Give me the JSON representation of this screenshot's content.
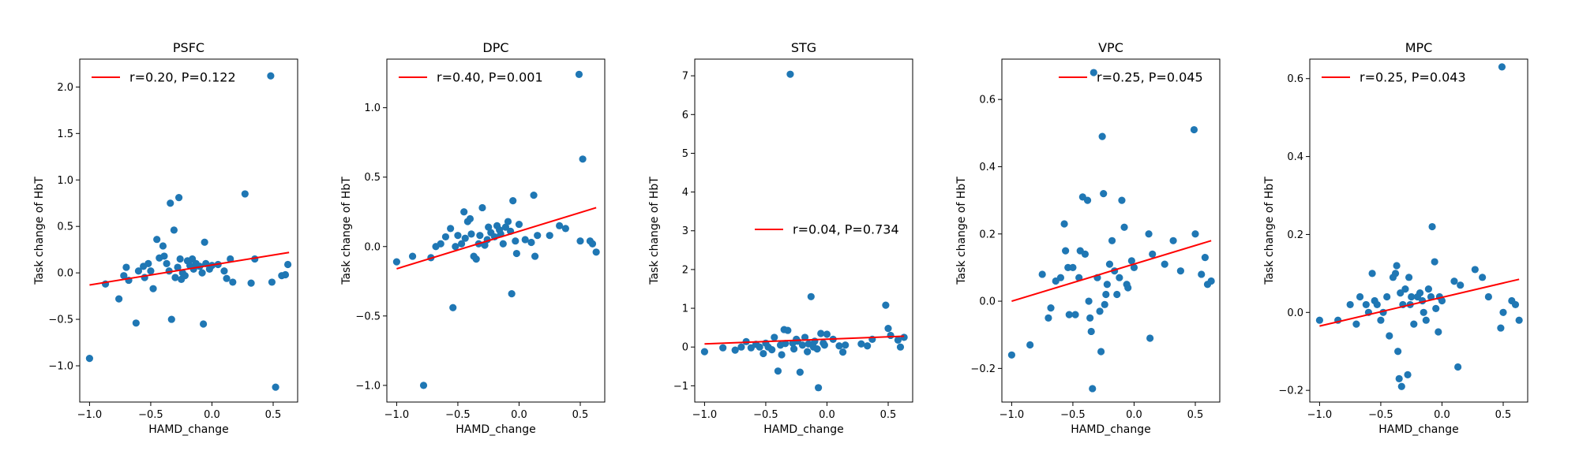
{
  "figure": {
    "marker_color": "#1f77b4",
    "fit_color": "#ff0000"
  },
  "chart_data": [
    {
      "type": "scatter",
      "title": "PSFC",
      "xlabel": "HAMD_change",
      "ylabel": "Task change of HbT",
      "xlim": [
        -1.08,
        0.7
      ],
      "ylim": [
        -1.39,
        2.3
      ],
      "xticks": [
        -1.0,
        -0.5,
        0.0,
        0.5
      ],
      "xtick_labels": [
        "−1.0",
        "−0.5",
        "0.0",
        "0.5"
      ],
      "yticks": [
        -1.0,
        -0.5,
        0.0,
        0.5,
        1.0,
        1.5,
        2.0
      ],
      "ytick_labels": [
        "−1.0",
        "−0.5",
        "0.0",
        "0.5",
        "1.0",
        "1.5",
        "2.0"
      ],
      "legend": {
        "text": "r=0.20, P=0.122",
        "loc": "upper-left"
      },
      "fit": {
        "x": [
          -1.0,
          0.63
        ],
        "y": [
          -0.13,
          0.22
        ]
      },
      "points": [
        [
          -1.0,
          -0.92
        ],
        [
          -0.87,
          -0.12
        ],
        [
          -0.76,
          -0.28
        ],
        [
          -0.72,
          -0.03
        ],
        [
          -0.7,
          0.06
        ],
        [
          -0.68,
          -0.08
        ],
        [
          -0.62,
          -0.54
        ],
        [
          -0.6,
          0.02
        ],
        [
          -0.56,
          0.07
        ],
        [
          -0.55,
          -0.05
        ],
        [
          -0.52,
          0.1
        ],
        [
          -0.5,
          0.02
        ],
        [
          -0.48,
          -0.17
        ],
        [
          -0.45,
          0.36
        ],
        [
          -0.43,
          0.16
        ],
        [
          -0.4,
          0.29
        ],
        [
          -0.39,
          0.18
        ],
        [
          -0.37,
          0.1
        ],
        [
          -0.35,
          0.02
        ],
        [
          -0.34,
          0.75
        ],
        [
          -0.33,
          -0.5
        ],
        [
          -0.31,
          0.46
        ],
        [
          -0.3,
          -0.05
        ],
        [
          -0.28,
          0.06
        ],
        [
          -0.27,
          0.81
        ],
        [
          -0.26,
          0.15
        ],
        [
          -0.25,
          -0.07
        ],
        [
          -0.24,
          0.0
        ],
        [
          -0.22,
          -0.03
        ],
        [
          -0.2,
          0.13
        ],
        [
          -0.18,
          0.08
        ],
        [
          -0.16,
          0.15
        ],
        [
          -0.15,
          0.04
        ],
        [
          -0.13,
          0.1
        ],
        [
          -0.1,
          0.07
        ],
        [
          -0.08,
          0.0
        ],
        [
          -0.07,
          -0.55
        ],
        [
          -0.06,
          0.33
        ],
        [
          -0.05,
          0.1
        ],
        [
          -0.02,
          0.04
        ],
        [
          0.0,
          0.08
        ],
        [
          0.05,
          0.09
        ],
        [
          0.1,
          0.02
        ],
        [
          0.12,
          -0.06
        ],
        [
          0.15,
          0.15
        ],
        [
          0.17,
          -0.1
        ],
        [
          0.27,
          0.85
        ],
        [
          0.32,
          -0.11
        ],
        [
          0.35,
          0.15
        ],
        [
          0.48,
          2.12
        ],
        [
          0.49,
          -0.1
        ],
        [
          0.52,
          -1.23
        ],
        [
          0.57,
          -0.03
        ],
        [
          0.6,
          -0.02
        ],
        [
          0.62,
          0.09
        ]
      ]
    },
    {
      "type": "scatter",
      "title": "DPC",
      "xlabel": "HAMD_change",
      "ylabel": "Task change of HbT",
      "xlim": [
        -1.08,
        0.7
      ],
      "ylim": [
        -1.12,
        1.35
      ],
      "xticks": [
        -1.0,
        -0.5,
        0.0,
        0.5
      ],
      "xtick_labels": [
        "−1.0",
        "−0.5",
        "0.0",
        "0.5"
      ],
      "yticks": [
        -1.0,
        -0.5,
        0.0,
        0.5,
        1.0
      ],
      "ytick_labels": [
        "−1.0",
        "−0.5",
        "0.0",
        "0.5",
        "1.0"
      ],
      "legend": {
        "text": "r=0.40, P=0.001",
        "loc": "upper-left"
      },
      "fit": {
        "x": [
          -1.0,
          0.63
        ],
        "y": [
          -0.16,
          0.28
        ]
      },
      "points": [
        [
          -1.0,
          -0.11
        ],
        [
          -0.87,
          -0.07
        ],
        [
          -0.78,
          -1.0
        ],
        [
          -0.72,
          -0.08
        ],
        [
          -0.68,
          0.0
        ],
        [
          -0.64,
          0.02
        ],
        [
          -0.6,
          0.07
        ],
        [
          -0.56,
          0.13
        ],
        [
          -0.54,
          -0.44
        ],
        [
          -0.52,
          0.0
        ],
        [
          -0.5,
          0.08
        ],
        [
          -0.47,
          0.02
        ],
        [
          -0.45,
          0.25
        ],
        [
          -0.44,
          0.06
        ],
        [
          -0.42,
          0.18
        ],
        [
          -0.4,
          0.2
        ],
        [
          -0.39,
          0.09
        ],
        [
          -0.37,
          -0.07
        ],
        [
          -0.35,
          -0.09
        ],
        [
          -0.33,
          0.02
        ],
        [
          -0.32,
          0.08
        ],
        [
          -0.3,
          0.28
        ],
        [
          -0.28,
          0.01
        ],
        [
          -0.26,
          0.05
        ],
        [
          -0.25,
          0.14
        ],
        [
          -0.23,
          0.1
        ],
        [
          -0.2,
          0.07
        ],
        [
          -0.18,
          0.15
        ],
        [
          -0.16,
          0.12
        ],
        [
          -0.15,
          0.09
        ],
        [
          -0.13,
          0.02
        ],
        [
          -0.11,
          0.14
        ],
        [
          -0.09,
          0.18
        ],
        [
          -0.07,
          0.11
        ],
        [
          -0.06,
          -0.34
        ],
        [
          -0.05,
          0.33
        ],
        [
          -0.03,
          0.04
        ],
        [
          -0.02,
          -0.05
        ],
        [
          0.0,
          0.16
        ],
        [
          0.05,
          0.05
        ],
        [
          0.1,
          0.03
        ],
        [
          0.12,
          0.37
        ],
        [
          0.13,
          -0.07
        ],
        [
          0.15,
          0.08
        ],
        [
          0.25,
          0.08
        ],
        [
          0.33,
          0.15
        ],
        [
          0.38,
          0.13
        ],
        [
          0.49,
          1.24
        ],
        [
          0.5,
          0.04
        ],
        [
          0.52,
          0.63
        ],
        [
          0.58,
          0.04
        ],
        [
          0.6,
          0.02
        ],
        [
          0.63,
          -0.04
        ]
      ]
    },
    {
      "type": "scatter",
      "title": "STG",
      "xlabel": "HAMD_change",
      "ylabel": "Task change of HbT",
      "xlim": [
        -1.08,
        0.7
      ],
      "ylim": [
        -1.42,
        7.43
      ],
      "xticks": [
        -1.0,
        -0.5,
        0.0,
        0.5
      ],
      "xtick_labels": [
        "−1.0",
        "−0.5",
        "0.0",
        "0.5"
      ],
      "yticks": [
        -1,
        0,
        1,
        2,
        3,
        4,
        5,
        6,
        7
      ],
      "ytick_labels": [
        "−1",
        "0",
        "1",
        "2",
        "3",
        "4",
        "5",
        "6",
        "7"
      ],
      "legend": {
        "text": "r=0.04, P=0.734",
        "loc": "center-right"
      },
      "fit": {
        "x": [
          -1.0,
          0.63
        ],
        "y": [
          0.08,
          0.28
        ]
      },
      "points": [
        [
          -1.0,
          -0.12
        ],
        [
          -0.85,
          -0.02
        ],
        [
          -0.75,
          -0.08
        ],
        [
          -0.7,
          0.0
        ],
        [
          -0.66,
          0.14
        ],
        [
          -0.62,
          -0.02
        ],
        [
          -0.58,
          0.07
        ],
        [
          -0.55,
          0.0
        ],
        [
          -0.52,
          -0.17
        ],
        [
          -0.5,
          0.1
        ],
        [
          -0.48,
          0.0
        ],
        [
          -0.45,
          -0.07
        ],
        [
          -0.43,
          0.25
        ],
        [
          -0.4,
          -0.62
        ],
        [
          -0.38,
          0.05
        ],
        [
          -0.37,
          -0.2
        ],
        [
          -0.35,
          0.45
        ],
        [
          -0.34,
          0.09
        ],
        [
          -0.32,
          0.43
        ],
        [
          -0.3,
          7.04
        ],
        [
          -0.28,
          0.1
        ],
        [
          -0.27,
          -0.05
        ],
        [
          -0.25,
          0.2
        ],
        [
          -0.24,
          0.15
        ],
        [
          -0.22,
          -0.65
        ],
        [
          -0.2,
          0.05
        ],
        [
          -0.18,
          0.25
        ],
        [
          -0.16,
          -0.12
        ],
        [
          -0.15,
          0.08
        ],
        [
          -0.13,
          1.3
        ],
        [
          -0.11,
          0.0
        ],
        [
          -0.1,
          0.15
        ],
        [
          -0.08,
          -0.05
        ],
        [
          -0.07,
          -1.05
        ],
        [
          -0.05,
          0.35
        ],
        [
          -0.03,
          0.1
        ],
        [
          -0.02,
          0.05
        ],
        [
          0.0,
          0.33
        ],
        [
          0.05,
          0.2
        ],
        [
          0.1,
          0.03
        ],
        [
          0.13,
          -0.13
        ],
        [
          0.15,
          0.05
        ],
        [
          0.28,
          0.08
        ],
        [
          0.33,
          0.03
        ],
        [
          0.37,
          0.2
        ],
        [
          0.48,
          1.08
        ],
        [
          0.5,
          0.48
        ],
        [
          0.52,
          0.3
        ],
        [
          0.58,
          0.18
        ],
        [
          0.6,
          0.0
        ],
        [
          0.63,
          0.25
        ]
      ]
    },
    {
      "type": "scatter",
      "title": "VPC",
      "xlabel": "HAMD_change",
      "ylabel": "Task change of HbT",
      "xlim": [
        -1.08,
        0.7
      ],
      "ylim": [
        -0.3,
        0.72
      ],
      "xticks": [
        -1.0,
        -0.5,
        0.0,
        0.5
      ],
      "xtick_labels": [
        "−1.0",
        "−0.5",
        "0.0",
        "0.5"
      ],
      "yticks": [
        -0.2,
        0.0,
        0.2,
        0.4,
        0.6
      ],
      "ytick_labels": [
        "−0.2",
        "0.0",
        "0.2",
        "0.4",
        "0.6"
      ],
      "legend": {
        "text": "r=0.25, P=0.045",
        "loc": "upper-right"
      },
      "fit": {
        "x": [
          -1.0,
          0.63
        ],
        "y": [
          0.0,
          0.18
        ]
      },
      "points": [
        [
          -1.0,
          -0.16
        ],
        [
          -0.85,
          -0.13
        ],
        [
          -0.75,
          0.08
        ],
        [
          -0.7,
          -0.05
        ],
        [
          -0.68,
          -0.02
        ],
        [
          -0.64,
          0.06
        ],
        [
          -0.6,
          0.07
        ],
        [
          -0.57,
          0.23
        ],
        [
          -0.56,
          0.15
        ],
        [
          -0.54,
          0.1
        ],
        [
          -0.53,
          -0.04
        ],
        [
          -0.5,
          0.1
        ],
        [
          -0.48,
          -0.04
        ],
        [
          -0.45,
          0.07
        ],
        [
          -0.44,
          0.15
        ],
        [
          -0.42,
          0.31
        ],
        [
          -0.4,
          0.14
        ],
        [
          -0.38,
          0.3
        ],
        [
          -0.37,
          0.0
        ],
        [
          -0.36,
          -0.05
        ],
        [
          -0.35,
          -0.09
        ],
        [
          -0.34,
          -0.26
        ],
        [
          -0.33,
          0.68
        ],
        [
          -0.3,
          0.07
        ],
        [
          -0.28,
          -0.03
        ],
        [
          -0.27,
          -0.15
        ],
        [
          -0.26,
          0.49
        ],
        [
          -0.25,
          0.32
        ],
        [
          -0.24,
          -0.01
        ],
        [
          -0.23,
          0.02
        ],
        [
          -0.22,
          0.05
        ],
        [
          -0.2,
          0.11
        ],
        [
          -0.18,
          0.18
        ],
        [
          -0.16,
          0.09
        ],
        [
          -0.14,
          0.02
        ],
        [
          -0.12,
          0.07
        ],
        [
          -0.1,
          0.3
        ],
        [
          -0.08,
          0.22
        ],
        [
          -0.06,
          0.05
        ],
        [
          -0.05,
          0.04
        ],
        [
          -0.02,
          0.12
        ],
        [
          0.0,
          0.1
        ],
        [
          0.12,
          0.2
        ],
        [
          0.13,
          -0.11
        ],
        [
          0.15,
          0.14
        ],
        [
          0.25,
          0.11
        ],
        [
          0.32,
          0.18
        ],
        [
          0.38,
          0.09
        ],
        [
          0.49,
          0.51
        ],
        [
          0.5,
          0.2
        ],
        [
          0.55,
          0.08
        ],
        [
          0.58,
          0.13
        ],
        [
          0.6,
          0.05
        ],
        [
          0.63,
          0.06
        ]
      ]
    },
    {
      "type": "scatter",
      "title": "MPC",
      "xlabel": "HAMD_change",
      "ylabel": "Task change of HbT",
      "xlim": [
        -1.08,
        0.7
      ],
      "ylim": [
        -0.23,
        0.65
      ],
      "xticks": [
        -1.0,
        -0.5,
        0.0,
        0.5
      ],
      "xtick_labels": [
        "−1.0",
        "−0.5",
        "0.0",
        "0.5"
      ],
      "yticks": [
        -0.2,
        0.0,
        0.2,
        0.4,
        0.6
      ],
      "ytick_labels": [
        "−0.2",
        "0.0",
        "0.2",
        "0.4",
        "0.6"
      ],
      "legend": {
        "text": "r=0.25, P=0.043",
        "loc": "upper-left"
      },
      "fit": {
        "x": [
          -1.0,
          0.63
        ],
        "y": [
          -0.035,
          0.085
        ]
      },
      "points": [
        [
          -1.0,
          -0.02
        ],
        [
          -0.85,
          -0.02
        ],
        [
          -0.75,
          0.02
        ],
        [
          -0.7,
          -0.03
        ],
        [
          -0.67,
          0.04
        ],
        [
          -0.62,
          0.02
        ],
        [
          -0.6,
          0.0
        ],
        [
          -0.57,
          0.1
        ],
        [
          -0.55,
          0.03
        ],
        [
          -0.53,
          0.02
        ],
        [
          -0.5,
          -0.02
        ],
        [
          -0.48,
          0.0
        ],
        [
          -0.45,
          0.04
        ],
        [
          -0.43,
          -0.06
        ],
        [
          -0.4,
          0.09
        ],
        [
          -0.38,
          0.1
        ],
        [
          -0.37,
          0.12
        ],
        [
          -0.36,
          -0.1
        ],
        [
          -0.35,
          -0.17
        ],
        [
          -0.34,
          0.05
        ],
        [
          -0.33,
          -0.19
        ],
        [
          -0.32,
          0.02
        ],
        [
          -0.3,
          0.06
        ],
        [
          -0.28,
          -0.16
        ],
        [
          -0.27,
          0.09
        ],
        [
          -0.26,
          0.02
        ],
        [
          -0.25,
          0.04
        ],
        [
          -0.23,
          -0.03
        ],
        [
          -0.2,
          0.04
        ],
        [
          -0.18,
          0.05
        ],
        [
          -0.16,
          0.03
        ],
        [
          -0.15,
          0.0
        ],
        [
          -0.13,
          -0.02
        ],
        [
          -0.11,
          0.06
        ],
        [
          -0.09,
          0.04
        ],
        [
          -0.08,
          0.22
        ],
        [
          -0.06,
          0.13
        ],
        [
          -0.05,
          0.01
        ],
        [
          -0.03,
          -0.05
        ],
        [
          -0.02,
          0.04
        ],
        [
          0.0,
          0.03
        ],
        [
          0.1,
          0.08
        ],
        [
          0.13,
          -0.14
        ],
        [
          0.15,
          0.07
        ],
        [
          0.27,
          0.11
        ],
        [
          0.33,
          0.09
        ],
        [
          0.38,
          0.04
        ],
        [
          0.48,
          -0.04
        ],
        [
          0.49,
          0.63
        ],
        [
          0.5,
          0.0
        ],
        [
          0.57,
          0.03
        ],
        [
          0.6,
          0.02
        ],
        [
          0.63,
          -0.02
        ]
      ]
    }
  ]
}
